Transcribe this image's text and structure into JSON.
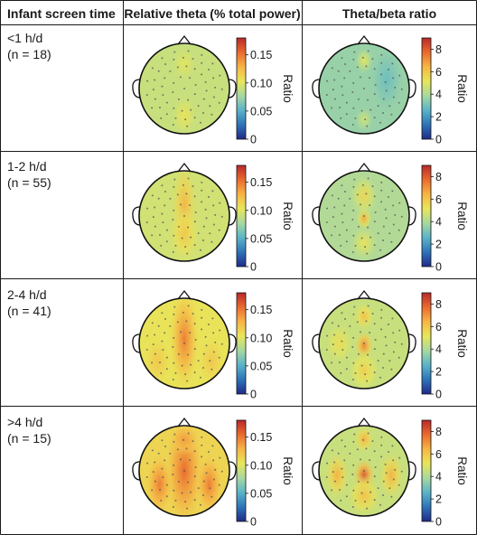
{
  "headers": {
    "col1": "Infant screen time",
    "col2": "Relative theta (% total power)",
    "col3": "Theta/beta ratio"
  },
  "rows": [
    {
      "line1": "<1 h/d",
      "line2": "(n = 18)"
    },
    {
      "line1": "1-2 h/d",
      "line2": "(n = 55)"
    },
    {
      "line1": "2-4 h/d",
      "line2": "(n = 41)"
    },
    {
      "line1": ">4 h/d",
      "line2": "(n = 15)"
    }
  ],
  "colorbars": {
    "theta": {
      "title": "Ratio",
      "ticks": [
        "0.15",
        "0.10",
        "0.05",
        "0"
      ]
    },
    "ratio": {
      "title": "Ratio",
      "ticks": [
        "8",
        "6",
        "4",
        "2",
        "0"
      ]
    }
  },
  "colormap": [
    "#1f2a8a",
    "#2e74b8",
    "#5ab4c9",
    "#a8d8a0",
    "#e8e65a",
    "#f7b545",
    "#ea6b2f",
    "#b9282a"
  ],
  "topomaps": [
    {
      "row": 0,
      "col": "theta",
      "base": 0.5,
      "hot": [
        [
          0.0,
          0.6,
          0.58,
          0.18,
          0.28
        ],
        [
          0.0,
          -0.55,
          0.56,
          0.18,
          0.25
        ]
      ]
    },
    {
      "row": 0,
      "col": "ratio",
      "base": 0.4,
      "hot": [
        [
          0.0,
          -0.62,
          0.56,
          0.14,
          0.2
        ],
        [
          0.0,
          0.68,
          0.52,
          0.14,
          0.18
        ],
        [
          0.5,
          -0.2,
          0.32,
          0.25,
          0.5
        ]
      ]
    },
    {
      "row": 1,
      "col": "theta",
      "base": 0.52,
      "hot": [
        [
          0.0,
          -0.2,
          0.72,
          0.18,
          0.65
        ],
        [
          0.0,
          0.4,
          0.66,
          0.22,
          0.4
        ]
      ]
    },
    {
      "row": 1,
      "col": "ratio",
      "base": 0.45,
      "hot": [
        [
          0.0,
          0.05,
          0.74,
          0.12,
          0.18
        ],
        [
          0.0,
          -0.45,
          0.62,
          0.2,
          0.3
        ],
        [
          0.0,
          0.6,
          0.58,
          0.2,
          0.25
        ]
      ]
    },
    {
      "row": 2,
      "col": "theta",
      "base": 0.58,
      "hot": [
        [
          0.0,
          -0.1,
          0.82,
          0.22,
          0.75
        ],
        [
          -0.6,
          0.4,
          0.66,
          0.2,
          0.35
        ],
        [
          0.6,
          0.4,
          0.66,
          0.2,
          0.35
        ]
      ]
    },
    {
      "row": 2,
      "col": "ratio",
      "base": 0.5,
      "hot": [
        [
          0.0,
          0.05,
          0.8,
          0.14,
          0.22
        ],
        [
          0.0,
          -0.6,
          0.68,
          0.15,
          0.2
        ],
        [
          0.0,
          0.6,
          0.64,
          0.22,
          0.3
        ],
        [
          -0.55,
          0.0,
          0.6,
          0.2,
          0.3
        ]
      ]
    },
    {
      "row": 3,
      "col": "theta",
      "base": 0.62,
      "hot": [
        [
          0.0,
          0.0,
          0.86,
          0.28,
          0.8
        ],
        [
          -0.55,
          0.3,
          0.82,
          0.2,
          0.45
        ],
        [
          0.55,
          0.3,
          0.82,
          0.2,
          0.45
        ],
        [
          0.0,
          -0.7,
          0.76,
          0.22,
          0.22
        ]
      ]
    },
    {
      "row": 3,
      "col": "ratio",
      "base": 0.5,
      "hot": [
        [
          0.0,
          0.1,
          0.9,
          0.16,
          0.25
        ],
        [
          0.0,
          -0.7,
          0.72,
          0.15,
          0.2
        ],
        [
          -0.6,
          0.1,
          0.72,
          0.18,
          0.35
        ],
        [
          0.6,
          0.1,
          0.72,
          0.18,
          0.35
        ],
        [
          0.0,
          0.55,
          0.68,
          0.25,
          0.3
        ]
      ]
    }
  ]
}
